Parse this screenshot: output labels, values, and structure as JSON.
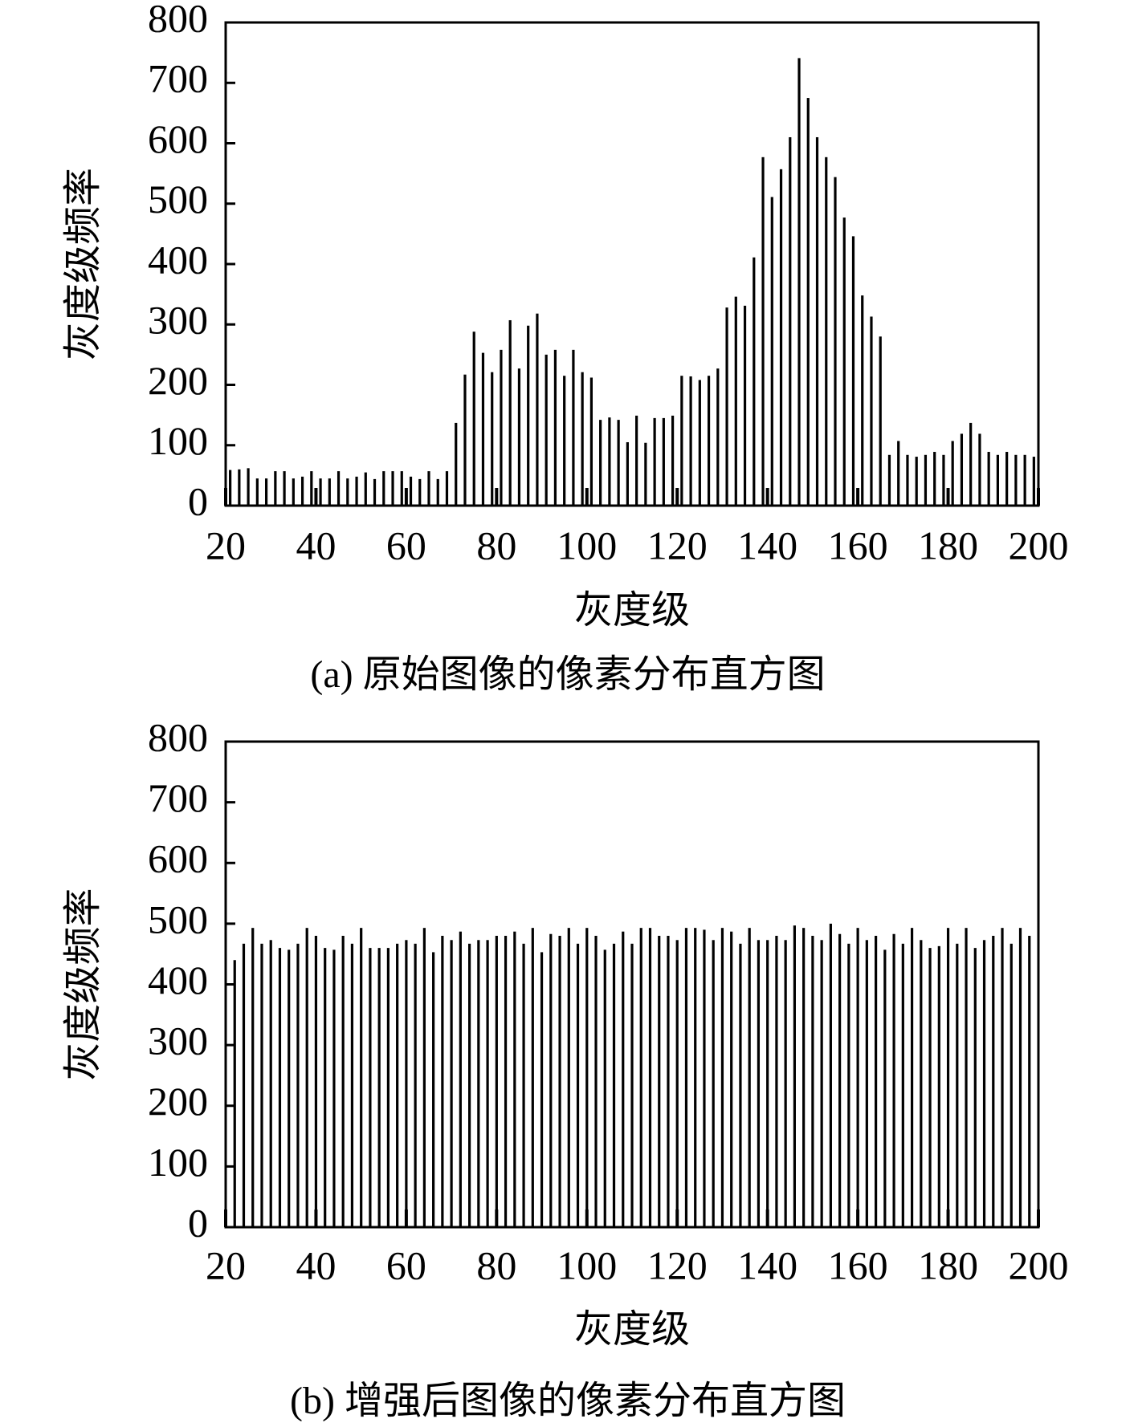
{
  "chart_data": [
    {
      "type": "bar",
      "title": "(a) 原始图像的像素分布直方图",
      "xlabel": "灰度级",
      "ylabel": "灰度级频率",
      "color": "#000000",
      "xlim": [
        20,
        200
      ],
      "ylim": [
        0,
        800
      ],
      "xticks": [
        20,
        40,
        60,
        80,
        100,
        120,
        140,
        160,
        180,
        200
      ],
      "yticks": [
        0,
        100,
        200,
        300,
        400,
        500,
        600,
        700,
        800
      ],
      "x": [
        21,
        23,
        25,
        27,
        29,
        31,
        33,
        35,
        37,
        39,
        41,
        43,
        45,
        47,
        49,
        51,
        53,
        55,
        57,
        59,
        61,
        63,
        65,
        67,
        69,
        71,
        73,
        75,
        77,
        79,
        81,
        83,
        85,
        87,
        89,
        91,
        93,
        95,
        97,
        99,
        101,
        103,
        105,
        107,
        109,
        111,
        113,
        115,
        117,
        119,
        121,
        123,
        125,
        127,
        129,
        131,
        133,
        135,
        137,
        139,
        141,
        143,
        145,
        147,
        149,
        151,
        153,
        155,
        157,
        159,
        161,
        163,
        165,
        167,
        169,
        171,
        173,
        175,
        177,
        179,
        181,
        183,
        185,
        187,
        189,
        191,
        193,
        195,
        197,
        199
      ],
      "values": [
        59,
        60,
        62,
        45,
        45,
        57,
        57,
        45,
        48,
        57,
        45,
        45,
        57,
        45,
        48,
        55,
        44,
        57,
        57,
        57,
        48,
        44,
        57,
        44,
        57,
        137,
        217,
        288,
        253,
        221,
        258,
        307,
        227,
        298,
        318,
        250,
        258,
        215,
        258,
        221,
        212,
        142,
        146,
        142,
        105,
        149,
        104,
        145,
        145,
        149,
        215,
        214,
        208,
        215,
        227,
        328,
        346,
        331,
        411,
        577,
        511,
        557,
        610,
        741,
        675,
        610,
        577,
        544,
        477,
        446,
        348,
        313,
        280,
        84,
        107,
        84,
        81,
        84,
        89,
        84,
        107,
        119,
        137,
        119,
        89,
        84,
        89,
        84,
        84,
        81
      ]
    },
    {
      "type": "bar",
      "title": "(b) 增强后图像的像素分布直方图",
      "xlabel": "灰度级",
      "ylabel": "灰度级频率",
      "color": "#000000",
      "xlim": [
        20,
        200
      ],
      "ylim": [
        0,
        800
      ],
      "xticks": [
        20,
        40,
        60,
        80,
        100,
        120,
        140,
        160,
        180,
        200
      ],
      "yticks": [
        0,
        100,
        200,
        300,
        400,
        500,
        600,
        700,
        800
      ],
      "x": [
        22,
        24,
        26,
        28,
        30,
        32,
        34,
        36,
        38,
        40,
        42,
        44,
        46,
        48,
        50,
        52,
        54,
        56,
        58,
        60,
        62,
        64,
        66,
        68,
        70,
        72,
        74,
        76,
        78,
        80,
        82,
        84,
        86,
        88,
        90,
        92,
        94,
        96,
        98,
        100,
        102,
        104,
        106,
        108,
        110,
        112,
        114,
        116,
        118,
        120,
        122,
        124,
        126,
        128,
        130,
        132,
        134,
        136,
        138,
        140,
        142,
        144,
        146,
        148,
        150,
        152,
        154,
        156,
        158,
        160,
        162,
        164,
        166,
        168,
        170,
        172,
        174,
        176,
        178,
        180,
        182,
        184,
        186,
        188,
        190,
        192,
        194,
        196,
        198
      ],
      "values": [
        440,
        467,
        493,
        467,
        473,
        460,
        457,
        467,
        493,
        480,
        460,
        457,
        480,
        467,
        493,
        460,
        460,
        460,
        467,
        473,
        467,
        493,
        453,
        480,
        473,
        487,
        467,
        473,
        473,
        480,
        480,
        487,
        467,
        493,
        453,
        483,
        480,
        493,
        467,
        493,
        480,
        457,
        467,
        487,
        467,
        493,
        493,
        480,
        480,
        473,
        493,
        493,
        490,
        473,
        493,
        487,
        467,
        493,
        473,
        473,
        480,
        473,
        497,
        493,
        480,
        473,
        500,
        483,
        467,
        493,
        473,
        480,
        457,
        483,
        467,
        493,
        473,
        460,
        463,
        493,
        467,
        493,
        460,
        473,
        480,
        493,
        467,
        493,
        480
      ]
    }
  ]
}
